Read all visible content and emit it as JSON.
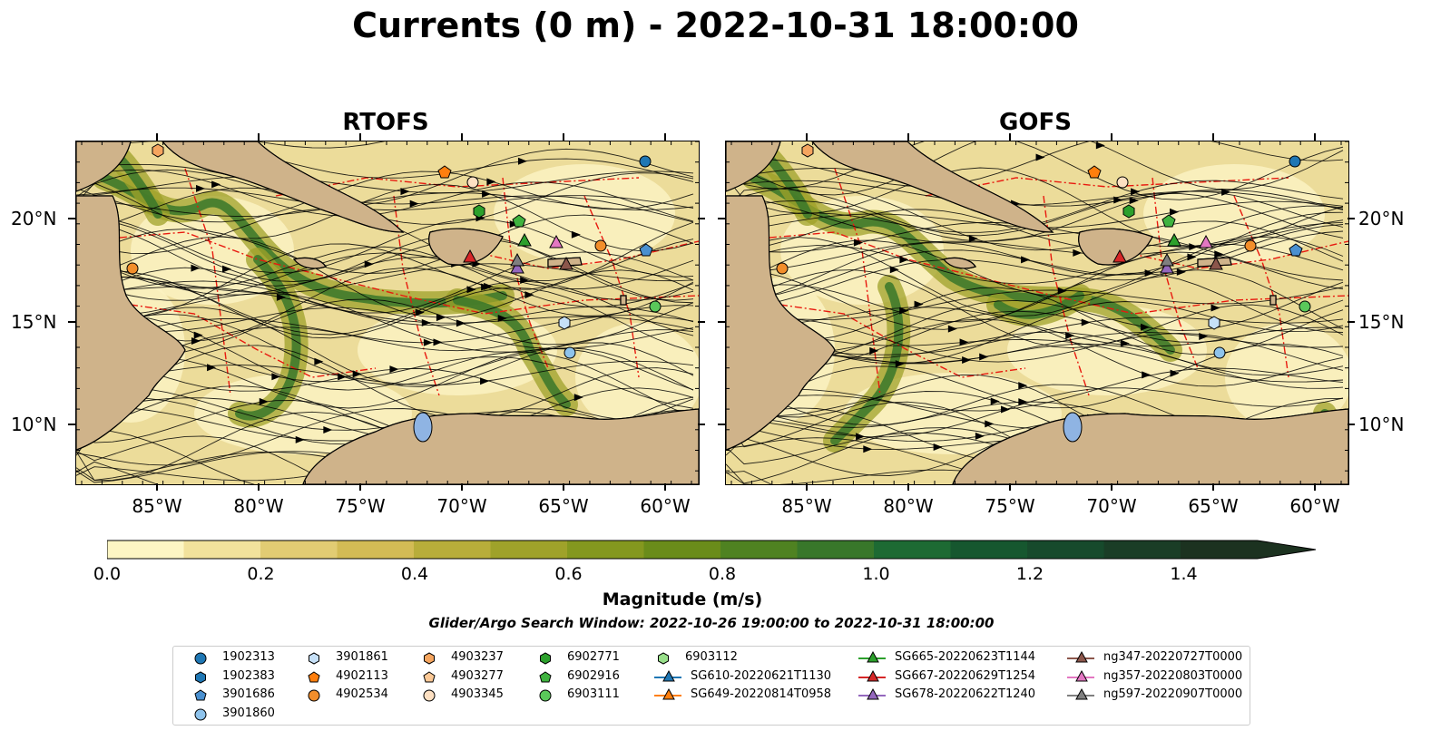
{
  "title": "Currents (0 m) - 2022-10-31 18:00:00",
  "panels": [
    {
      "title": "RTOFS"
    },
    {
      "title": "GOFS"
    }
  ],
  "axes": {
    "lon_ticks": [
      "85°W",
      "80°W",
      "75°W",
      "70°W",
      "65°W",
      "60°W"
    ],
    "lat_ticks": [
      "20°N",
      "15°N",
      "10°N"
    ]
  },
  "colorbar": {
    "label": "Magnitude (m/s)",
    "ticks": [
      "0.0",
      "0.2",
      "0.4",
      "0.6",
      "0.8",
      "1.0",
      "1.2",
      "1.4"
    ],
    "colors": [
      "#fdf6c4",
      "#f2e29c",
      "#e2cc73",
      "#d3bb55",
      "#b8ad3a",
      "#9fa22a",
      "#84981f",
      "#6a8c1a",
      "#4f8221",
      "#38772a",
      "#1d6a33",
      "#16572f",
      "#174a2c",
      "#1a3d26",
      "#1c3220"
    ]
  },
  "search_window": "Glider/Argo Search Window: 2022-10-26 19:00:00 to 2022-10-31 18:00:00",
  "legend": [
    {
      "label": "1902313",
      "marker": "circle",
      "color": "#1f77b4"
    },
    {
      "label": "1902383",
      "marker": "hexagon",
      "color": "#1f77b4"
    },
    {
      "label": "3901686",
      "marker": "pentagon",
      "color": "#4a90d0"
    },
    {
      "label": "3901860",
      "marker": "circle",
      "color": "#8ec3ec"
    },
    {
      "label": "3901861",
      "marker": "hexagon",
      "color": "#c6e0f7"
    },
    {
      "label": "4902113",
      "marker": "pentagon",
      "color": "#ff7f0e"
    },
    {
      "label": "4902534",
      "marker": "circle",
      "color": "#f28e2b"
    },
    {
      "label": "4903237",
      "marker": "hexagon",
      "color": "#f5a55f"
    },
    {
      "label": "4903277",
      "marker": "pentagon",
      "color": "#fcc996"
    },
    {
      "label": "4903345",
      "marker": "circle",
      "color": "#fde0c2"
    },
    {
      "label": "6902771",
      "marker": "hexagon",
      "color": "#2ca02c"
    },
    {
      "label": "6902916",
      "marker": "pentagon",
      "color": "#3fb33f"
    },
    {
      "label": "6903111",
      "marker": "circle",
      "color": "#5ac85a"
    },
    {
      "label": "SG610-20220621T1130",
      "marker": "triangle-line",
      "color": "#1f77b4"
    },
    {
      "label": "SG649-20220814T0958",
      "marker": "triangle-line",
      "color": "#ff7f0e"
    },
    {
      "label": "6903112",
      "marker": "hexagon",
      "color": "#98df8a"
    },
    {
      "label": "SG665-20220623T1144",
      "marker": "triangle-line",
      "color": "#2ca02c"
    },
    {
      "label": "SG667-20220629T1254",
      "marker": "triangle-line",
      "color": "#d62728"
    },
    {
      "label": "SG678-20220622T1240",
      "marker": "triangle-line",
      "color": "#9467bd"
    },
    {
      "label": "ng347-20220727T0000",
      "marker": "triangle-line",
      "color": "#8c564b"
    },
    {
      "label": "ng357-20220803T0000",
      "marker": "triangle-line",
      "color": "#e377c2"
    },
    {
      "label": "ng597-20220907T0000",
      "marker": "triangle-line",
      "color": "#7f7f7f"
    }
  ]
}
